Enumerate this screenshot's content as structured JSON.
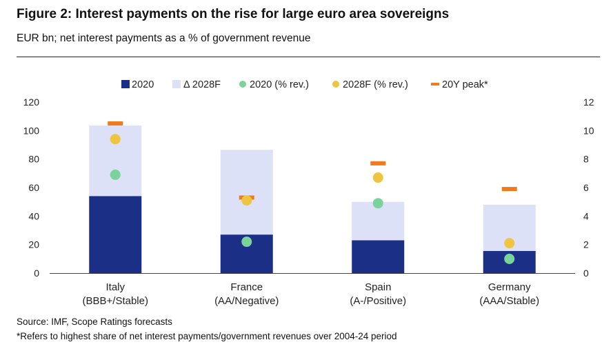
{
  "header": {
    "title": "Figure 2: Interest payments on the rise for large euro area sovereigns",
    "subtitle": "EUR bn; net interest payments as a % of government revenue"
  },
  "footer": {
    "source": "Source: IMF, Scope Ratings forecasts",
    "note": "*Refers to highest share of net interest payments/government revenues over 2004-24 period"
  },
  "colors": {
    "bar_2020": "#1b2f86",
    "bar_delta": "#dde1f7",
    "dot_2020": "#79d39a",
    "dot_2028": "#efc440",
    "peak": "#f07a1e",
    "axis": "#444444"
  },
  "chart_data": {
    "type": "bar",
    "stacked": true,
    "categories": [
      [
        "Italy",
        "(BBB+/Stable)"
      ],
      [
        "France",
        "(AA/Negative)"
      ],
      [
        "Spain",
        "(A-/Positive)"
      ],
      [
        "Germany",
        "(AAA/Stable)"
      ]
    ],
    "legend": {
      "position": "top",
      "entries": [
        "2020",
        "Δ 2028F",
        "2020 (% rev.)",
        "2028F (% rev.)",
        "20Y peak*"
      ]
    },
    "left_axis": {
      "ylim": [
        0,
        120
      ],
      "ticks": [
        0,
        20,
        40,
        60,
        80,
        100,
        120
      ]
    },
    "right_axis": {
      "ylim": [
        0,
        12
      ],
      "ticks": [
        0,
        2,
        4,
        6,
        8,
        10,
        12
      ]
    },
    "grid": false,
    "series": [
      {
        "name": "2020",
        "kind": "bar",
        "axis": "left",
        "values": [
          54,
          27,
          23,
          15.5
        ]
      },
      {
        "name": "Δ 2028F",
        "kind": "bar",
        "axis": "left",
        "values": [
          49.5,
          59.5,
          27,
          32.5
        ]
      },
      {
        "name": "2020 (% rev.)",
        "kind": "dot",
        "axis": "right",
        "values": [
          6.9,
          2.2,
          4.9,
          1.0
        ]
      },
      {
        "name": "2028F (% rev.)",
        "kind": "dot",
        "axis": "right",
        "values": [
          9.4,
          5.1,
          6.7,
          2.1
        ]
      },
      {
        "name": "20Y peak*",
        "kind": "dash",
        "axis": "right",
        "values": [
          10.5,
          5.3,
          7.7,
          5.9
        ]
      }
    ]
  }
}
